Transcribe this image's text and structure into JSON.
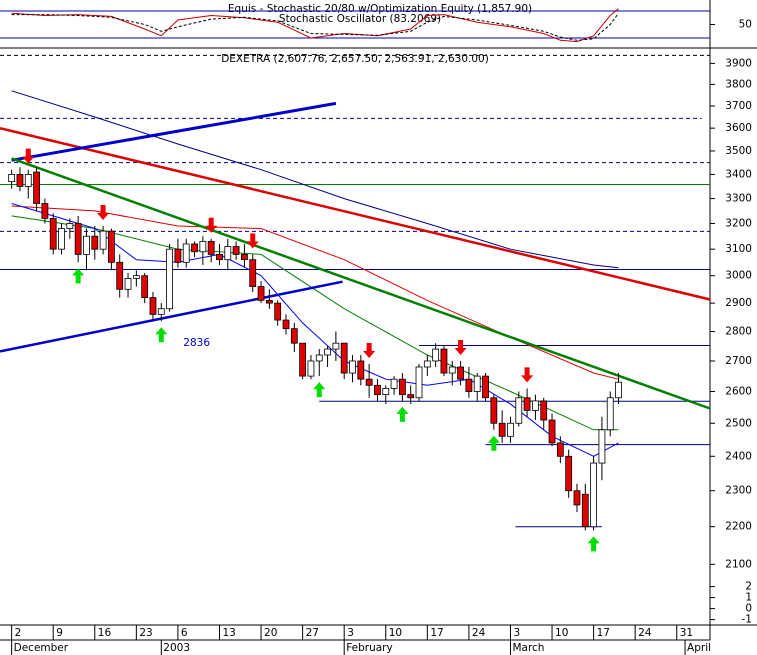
{
  "chart_data": [
    {
      "type": "line",
      "title": "Equis - Stochastic 20/80 w/Optimization Equity (1,857.90)",
      "subtitle": "Stochastic Oscillator (83.2069)",
      "ylim": [
        0,
        100
      ],
      "yticks": [
        50
      ],
      "xlim": [
        -1.4,
        84
      ],
      "levels": [
        {
          "value": 80,
          "color": "#0000aa"
        },
        {
          "value": 20,
          "color": "#0000aa"
        }
      ],
      "series": [
        {
          "color": "#cc0000",
          "dashed": false,
          "x": [
            0,
            4,
            8,
            12,
            16,
            18,
            20,
            24,
            28,
            32,
            36,
            40,
            44,
            48,
            50,
            52,
            56,
            60,
            64,
            66,
            68,
            70,
            72,
            73
          ],
          "values": [
            75,
            70,
            72,
            68,
            40,
            25,
            60,
            70,
            65,
            55,
            20,
            30,
            25,
            40,
            70,
            72,
            55,
            45,
            30,
            15,
            12,
            25,
            70,
            85
          ]
        },
        {
          "color": "#000000",
          "dashed": true,
          "x": [
            0,
            4,
            8,
            12,
            16,
            18,
            20,
            24,
            28,
            32,
            36,
            40,
            44,
            48,
            50,
            52,
            56,
            60,
            64,
            66,
            68,
            70,
            72,
            73
          ],
          "values": [
            72,
            72,
            70,
            66,
            50,
            35,
            45,
            62,
            66,
            58,
            30,
            28,
            26,
            35,
            55,
            68,
            60,
            48,
            35,
            22,
            15,
            18,
            50,
            75
          ]
        }
      ]
    },
    {
      "type": "candlestick",
      "title": "DEXETRA (2,607.76, 2,657.50, 2,563.91, 2,630.00)",
      "log_scale": true,
      "ylim": [
        2070,
        3965
      ],
      "yticks": [
        3900,
        3800,
        3700,
        3600,
        3500,
        3400,
        3300,
        3200,
        3100,
        3000,
        2900,
        2800,
        2700,
        2600,
        2500,
        2400,
        2300,
        2200,
        2100
      ],
      "xlim": [
        -1.4,
        84
      ],
      "xticks": [
        {
          "value": 0,
          "label": "2"
        },
        {
          "value": 5,
          "label": "9"
        },
        {
          "value": 10,
          "label": "16"
        },
        {
          "value": 15,
          "label": "23"
        },
        {
          "value": 20,
          "label": "6"
        },
        {
          "value": 25,
          "label": "13"
        },
        {
          "value": 30,
          "label": "20"
        },
        {
          "value": 35,
          "label": "27"
        },
        {
          "value": 40,
          "label": "3"
        },
        {
          "value": 45,
          "label": "10"
        },
        {
          "value": 50,
          "label": "17"
        },
        {
          "value": 55,
          "label": "24"
        },
        {
          "value": 60,
          "label": "3"
        },
        {
          "value": 65,
          "label": "10"
        },
        {
          "value": 70,
          "label": "17"
        },
        {
          "value": 75,
          "label": "24"
        },
        {
          "value": 80,
          "label": "31"
        }
      ],
      "x_groups": [
        {
          "value": 0,
          "label": "December"
        },
        {
          "value": 18,
          "label": "2003"
        },
        {
          "value": 40,
          "label": "February"
        },
        {
          "value": 60,
          "label": "March"
        },
        {
          "value": 81,
          "label": "April"
        }
      ],
      "up_color": "#ffffff",
      "down_color": "#e00000",
      "x": [
        0,
        1,
        2,
        3,
        4,
        5,
        6,
        7,
        8,
        9,
        10,
        11,
        12,
        13,
        14,
        15,
        16,
        17,
        18,
        19,
        20,
        21,
        22,
        23,
        24,
        25,
        26,
        27,
        28,
        29,
        30,
        31,
        32,
        33,
        34,
        35,
        36,
        37,
        38,
        39,
        40,
        41,
        42,
        43,
        44,
        45,
        46,
        47,
        48,
        49,
        50,
        51,
        52,
        53,
        54,
        55,
        56,
        57,
        58,
        59,
        60,
        61,
        62,
        63,
        64,
        65,
        66,
        67,
        68,
        69,
        70,
        71,
        72,
        73
      ],
      "open": [
        3370,
        3400,
        3350,
        3410,
        3280,
        3220,
        3100,
        3180,
        3200,
        3080,
        3150,
        3100,
        3170,
        3050,
        2950,
        2990,
        3000,
        2920,
        2860,
        2880,
        3100,
        3050,
        3120,
        3090,
        3130,
        3080,
        3060,
        3110,
        3080,
        3060,
        2960,
        2910,
        2900,
        2840,
        2810,
        2760,
        2650,
        2700,
        2720,
        2740,
        2760,
        2660,
        2700,
        2640,
        2620,
        2590,
        2610,
        2640,
        2590,
        2580,
        2680,
        2700,
        2740,
        2660,
        2680,
        2640,
        2600,
        2650,
        2580,
        2500,
        2460,
        2500,
        2580,
        2540,
        2570,
        2510,
        2440,
        2400,
        2300,
        2290,
        2200,
        2380,
        2480,
        2580
      ],
      "high": [
        3420,
        3430,
        3420,
        3430,
        3300,
        3240,
        3200,
        3220,
        3230,
        3180,
        3190,
        3190,
        3180,
        3080,
        3010,
        3020,
        3010,
        2940,
        2900,
        3120,
        3140,
        3140,
        3130,
        3150,
        3140,
        3120,
        3140,
        3130,
        3120,
        3080,
        2980,
        2950,
        2910,
        2860,
        2830,
        2760,
        2720,
        2740,
        2750,
        2800,
        2760,
        2720,
        2720,
        2690,
        2640,
        2620,
        2650,
        2660,
        2620,
        2690,
        2720,
        2760,
        2750,
        2700,
        2700,
        2680,
        2660,
        2660,
        2590,
        2540,
        2520,
        2600,
        2610,
        2590,
        2580,
        2530,
        2460,
        2420,
        2320,
        2320,
        2400,
        2520,
        2600,
        2660
      ],
      "low": [
        3340,
        3330,
        3300,
        3250,
        3200,
        3080,
        3080,
        3140,
        3050,
        3020,
        3060,
        3080,
        3020,
        2920,
        2920,
        2960,
        2900,
        2840,
        2836,
        2870,
        3030,
        3030,
        3070,
        3040,
        3050,
        3040,
        3020,
        3060,
        3030,
        2940,
        2900,
        2880,
        2820,
        2790,
        2730,
        2640,
        2640,
        2650,
        2680,
        2700,
        2640,
        2630,
        2620,
        2580,
        2570,
        2560,
        2590,
        2570,
        2560,
        2570,
        2650,
        2680,
        2650,
        2620,
        2620,
        2580,
        2570,
        2570,
        2480,
        2440,
        2440,
        2490,
        2520,
        2510,
        2480,
        2430,
        2380,
        2280,
        2240,
        2190,
        2190,
        2330,
        2460,
        2560
      ],
      "close": [
        3400,
        3350,
        3400,
        3280,
        3220,
        3100,
        3180,
        3200,
        3080,
        3150,
        3100,
        3170,
        3050,
        2950,
        2990,
        3000,
        2920,
        2860,
        2880,
        3100,
        3050,
        3120,
        3090,
        3130,
        3080,
        3060,
        3110,
        3080,
        3060,
        2960,
        2910,
        2900,
        2840,
        2810,
        2760,
        2650,
        2700,
        2720,
        2740,
        2760,
        2660,
        2700,
        2640,
        2620,
        2590,
        2610,
        2640,
        2590,
        2580,
        2680,
        2700,
        2740,
        2660,
        2680,
        2640,
        2600,
        2650,
        2580,
        2500,
        2460,
        2500,
        2580,
        2540,
        2570,
        2510,
        2440,
        2400,
        2300,
        2260,
        2200,
        2380,
        2480,
        2580,
        2630
      ],
      "overlays": [
        {
          "color": "#000080",
          "x": [
            0,
            10,
            20,
            30,
            40,
            50,
            60,
            70,
            73
          ],
          "values": [
            3770,
            3650,
            3530,
            3420,
            3300,
            3200,
            3100,
            3040,
            3030
          ]
        },
        {
          "color": "#e00000",
          "x": [
            0,
            10,
            20,
            30,
            40,
            50,
            60,
            70,
            73
          ],
          "values": [
            3270,
            3250,
            3190,
            3180,
            3060,
            2910,
            2780,
            2660,
            2640
          ]
        },
        {
          "color": "#008000",
          "x": [
            0,
            10,
            20,
            30,
            40,
            50,
            60,
            70,
            73
          ],
          "values": [
            3230,
            3180,
            3100,
            3080,
            2880,
            2720,
            2600,
            2480,
            2480
          ]
        },
        {
          "color": "#0000ff",
          "x": [
            0,
            5,
            10,
            15,
            20,
            25,
            30,
            35,
            40,
            45,
            50,
            55,
            60,
            65,
            70,
            73
          ],
          "values": [
            3280,
            3230,
            3180,
            3060,
            3050,
            3080,
            3000,
            2830,
            2700,
            2640,
            2620,
            2640,
            2560,
            2460,
            2400,
            2440
          ]
        }
      ],
      "trendlines": [
        {
          "color": "#dd0000",
          "x": [
            -1.4,
            84
          ],
          "values": [
            3600,
            2913
          ]
        },
        {
          "color": "#0000cc",
          "x": [
            0,
            39
          ],
          "values": [
            3460,
            3712
          ]
        },
        {
          "color": "#0000cc",
          "x": [
            -1.4,
            39.8
          ],
          "values": [
            2732,
            2978
          ]
        },
        {
          "color": "#008000",
          "x": [
            0,
            84
          ],
          "values": [
            3468,
            2546
          ]
        }
      ],
      "levels": [
        {
          "value": 3939,
          "x": [
            -1.4,
            84
          ],
          "color": "#000000",
          "dashed": true
        },
        {
          "value": 3644,
          "x": [
            -1.4,
            83
          ],
          "color": "#000080",
          "dashed": true
        },
        {
          "value": 3450,
          "x": [
            -1.4,
            84
          ],
          "color": "#000080",
          "dashed": true
        },
        {
          "value": 3358,
          "x": [
            -1.4,
            84
          ],
          "color": "#008000",
          "dashed": false
        },
        {
          "value": 3169,
          "x": [
            -1.4,
            84
          ],
          "color": "#000080",
          "dashed": true
        },
        {
          "value": 3023,
          "x": [
            -1.4,
            84
          ],
          "color": "#000080",
          "dashed": false
        },
        {
          "value": 2752,
          "x": [
            49,
            84
          ],
          "color": "#000080",
          "dashed": false
        },
        {
          "value": 2569,
          "x": [
            37,
            84
          ],
          "color": "#000080",
          "dashed": false
        },
        {
          "value": 2435,
          "x": [
            57,
            84
          ],
          "color": "#000080",
          "dashed": false
        },
        {
          "value": 2200,
          "x": [
            60.6,
            71
          ],
          "color": "#000080",
          "dashed": false
        }
      ],
      "signals": {
        "buy": [
          8,
          18,
          37,
          47,
          58,
          70
        ],
        "sell": [
          2,
          11,
          24,
          29,
          43,
          54,
          62
        ]
      },
      "annotations": [
        {
          "text": "2836",
          "x": 18
        }
      ]
    },
    {
      "type": "line",
      "ylim": [
        -1.4,
        2.6
      ],
      "yticks": [
        2,
        1,
        0,
        -1
      ]
    }
  ]
}
